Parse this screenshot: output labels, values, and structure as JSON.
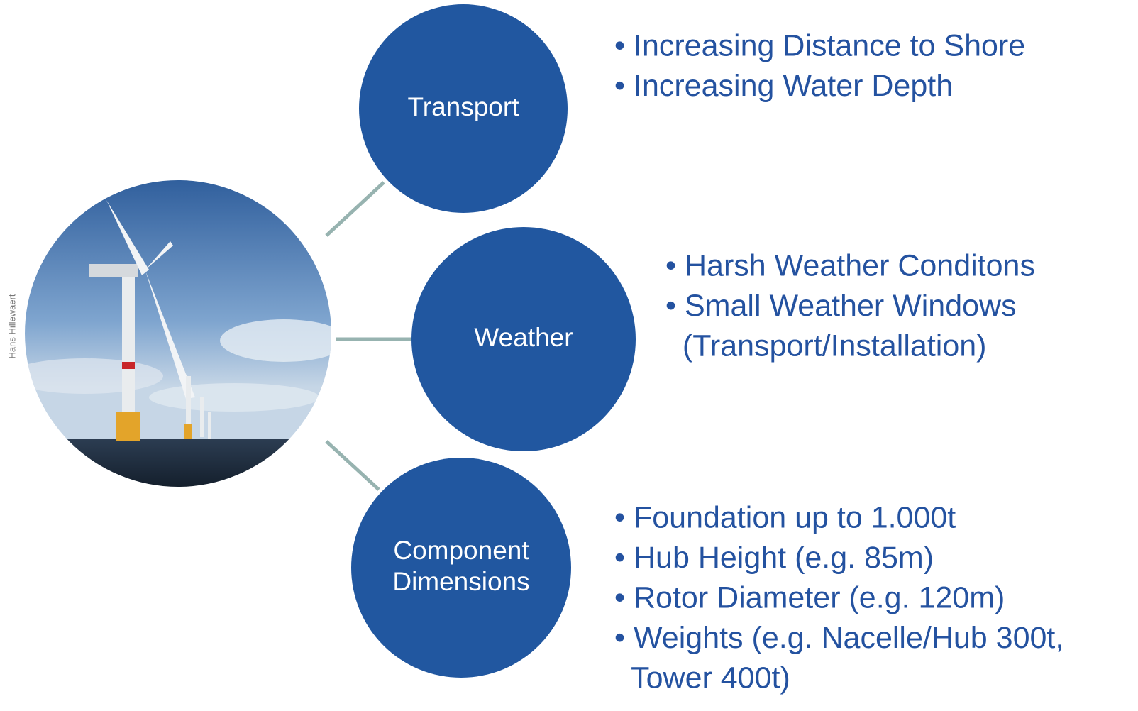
{
  "photo_credit": "Hans Hillewaert",
  "nodes": [
    {
      "label": [
        "Transport"
      ],
      "lines": [
        "• Increasing Distance to Shore",
        "• Increasing Water Depth"
      ]
    },
    {
      "label": [
        "Weather"
      ],
      "lines": [
        "• Harsh Weather Conditons",
        "• Small Weather Windows",
        "  (Transport/Installation)"
      ]
    },
    {
      "label": [
        "Component",
        "Dimensions"
      ],
      "lines": [
        "• Foundation up to 1.000t",
        "• Hub Height (e.g. 85m)",
        "• Rotor Diameter (e.g. 120m)",
        "• Weights (e.g. Nacelle/Hub 300t,",
        "  Tower 400t)"
      ]
    }
  ]
}
